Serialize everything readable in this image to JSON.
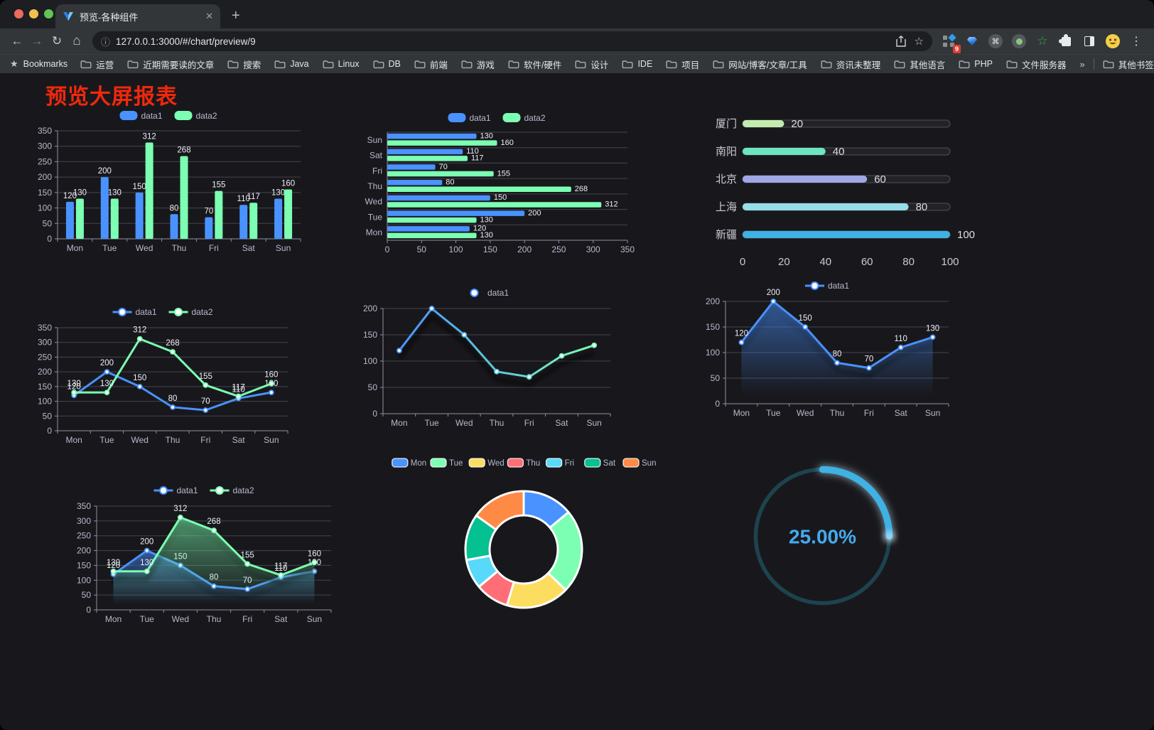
{
  "browser": {
    "tab_title": "预览-各种组件",
    "new_tab_glyph": "+",
    "close_glyph": "✕",
    "url": "127.0.0.1:3000/#/chart/preview/9",
    "extension_badge": "9",
    "bookmarks_label": "Bookmarks",
    "bookmarks": [
      "运营",
      "近期需要读的文章",
      "搜索",
      "Java",
      "Linux",
      "DB",
      "前端",
      "游戏",
      "软件/硬件",
      "设计",
      "IDE",
      "项目",
      "网站/博客/文章/工具",
      "资讯未整理",
      "其他语言",
      "PHP",
      "文件服务器"
    ],
    "bookmarks_overflow": "»",
    "other_bookmarks": "其他书签"
  },
  "page": {
    "title": "预览大屏报表",
    "title_color": "#f0280c",
    "background": "#18181c",
    "axis_text_color": "#b9b8ce",
    "grid_line_color": "#43434e",
    "axis_line_color": "#8f8fa3",
    "value_label_color": "#edeff7"
  },
  "chart_data": [
    {
      "id": "bar-vertical",
      "type": "bar",
      "categories": [
        "Mon",
        "Tue",
        "Wed",
        "Thu",
        "Fri",
        "Sat",
        "Sun"
      ],
      "series": [
        {
          "name": "data1",
          "color": "#4992ff",
          "values": [
            120,
            200,
            150,
            80,
            70,
            110,
            130
          ]
        },
        {
          "name": "data2",
          "color": "#7cffb2",
          "values": [
            130,
            130,
            312,
            268,
            155,
            117,
            160
          ]
        }
      ],
      "ylim": [
        0,
        350
      ],
      "ytick": 50,
      "legend_position": "top",
      "grid": true
    },
    {
      "id": "bar-horizontal",
      "type": "bar-horizontal",
      "categories": [
        "Mon",
        "Tue",
        "Wed",
        "Thu",
        "Fri",
        "Sat",
        "Sun"
      ],
      "series": [
        {
          "name": "data1",
          "color": "#4992ff",
          "values": [
            120,
            200,
            150,
            80,
            70,
            110,
            130
          ]
        },
        {
          "name": "data2",
          "color": "#7cffb2",
          "values": [
            130,
            130,
            312,
            268,
            155,
            117,
            160
          ]
        }
      ],
      "xlim": [
        0,
        350
      ],
      "xtick": 50,
      "legend_position": "top",
      "grid": true
    },
    {
      "id": "progress-bars",
      "type": "progress",
      "items": [
        {
          "label": "厦门",
          "value": 20,
          "color": "#c4ebad"
        },
        {
          "label": "南阳",
          "value": 40,
          "color": "#6be6c1"
        },
        {
          "label": "北京",
          "value": 60,
          "color": "#a0a7e6"
        },
        {
          "label": "上海",
          "value": 80,
          "color": "#96dee8"
        },
        {
          "label": "新疆",
          "value": 100,
          "color": "#3fb1e3"
        }
      ],
      "max": 100,
      "xticks": [
        0,
        20,
        40,
        60,
        80,
        100
      ]
    },
    {
      "id": "line-two-series",
      "type": "line",
      "categories": [
        "Mon",
        "Tue",
        "Wed",
        "Thu",
        "Fri",
        "Sat",
        "Sun"
      ],
      "series": [
        {
          "name": "data1",
          "color": "#4992ff",
          "values": [
            120,
            200,
            150,
            80,
            70,
            110,
            130
          ]
        },
        {
          "name": "data2",
          "color": "#7cffb2",
          "values": [
            130,
            130,
            312,
            268,
            155,
            117,
            160
          ]
        }
      ],
      "ylim": [
        0,
        350
      ],
      "ytick": 50,
      "labels": true,
      "legend_position": "top",
      "grid": true
    },
    {
      "id": "line-gradient",
      "type": "line",
      "categories": [
        "Mon",
        "Tue",
        "Wed",
        "Thu",
        "Fri",
        "Sat",
        "Sun"
      ],
      "series": [
        {
          "name": "data1",
          "gradient": [
            "#4992ff",
            "#7cffb2"
          ],
          "values": [
            120,
            200,
            150,
            80,
            70,
            110,
            130
          ]
        }
      ],
      "ylim": [
        0,
        200
      ],
      "ytick": 50,
      "labels": false,
      "shadow": true,
      "legend_position": "top",
      "grid": true
    },
    {
      "id": "area-single",
      "type": "line",
      "categories": [
        "Mon",
        "Tue",
        "Wed",
        "Thu",
        "Fri",
        "Sat",
        "Sun"
      ],
      "series": [
        {
          "name": "data1",
          "color": "#4992ff",
          "area": true,
          "values": [
            120,
            200,
            150,
            80,
            70,
            110,
            130
          ]
        }
      ],
      "ylim": [
        0,
        200
      ],
      "ytick": 50,
      "labels": true,
      "shadow": true,
      "legend_position": "top",
      "grid": true
    },
    {
      "id": "area-two-series",
      "type": "line",
      "categories": [
        "Mon",
        "Tue",
        "Wed",
        "Thu",
        "Fri",
        "Sat",
        "Sun"
      ],
      "series": [
        {
          "name": "data1",
          "color": "#4992ff",
          "area": true,
          "values": [
            120,
            200,
            150,
            80,
            70,
            110,
            130
          ]
        },
        {
          "name": "data2",
          "color": "#7cffb2",
          "area": true,
          "values": [
            130,
            130,
            312,
            268,
            155,
            117,
            160
          ]
        }
      ],
      "ylim": [
        0,
        350
      ],
      "ytick": 50,
      "labels": true,
      "shadow": true,
      "legend_position": "top",
      "grid": true
    },
    {
      "id": "donut",
      "type": "pie",
      "items": [
        {
          "label": "Mon",
          "value": 120,
          "color": "#4992ff"
        },
        {
          "label": "Tue",
          "value": 200,
          "color": "#7cffb2"
        },
        {
          "label": "Wed",
          "value": 150,
          "color": "#fddd60"
        },
        {
          "label": "Thu",
          "value": 80,
          "color": "#ff6e76"
        },
        {
          "label": "Fri",
          "value": 70,
          "color": "#58d9f9"
        },
        {
          "label": "Sat",
          "value": 110,
          "color": "#05c091"
        },
        {
          "label": "Sun",
          "value": 130,
          "color": "#ff8a45"
        }
      ],
      "inner_radius": 48,
      "outer_radius": 82,
      "border_color": "#ffffff",
      "legend_position": "top"
    },
    {
      "id": "gauge",
      "type": "gauge",
      "value": 25,
      "max": 100,
      "label": "25.00%",
      "arc_color": "#3fb1e3",
      "track_color": "#1d434e",
      "text_color": "#45aaef"
    }
  ]
}
